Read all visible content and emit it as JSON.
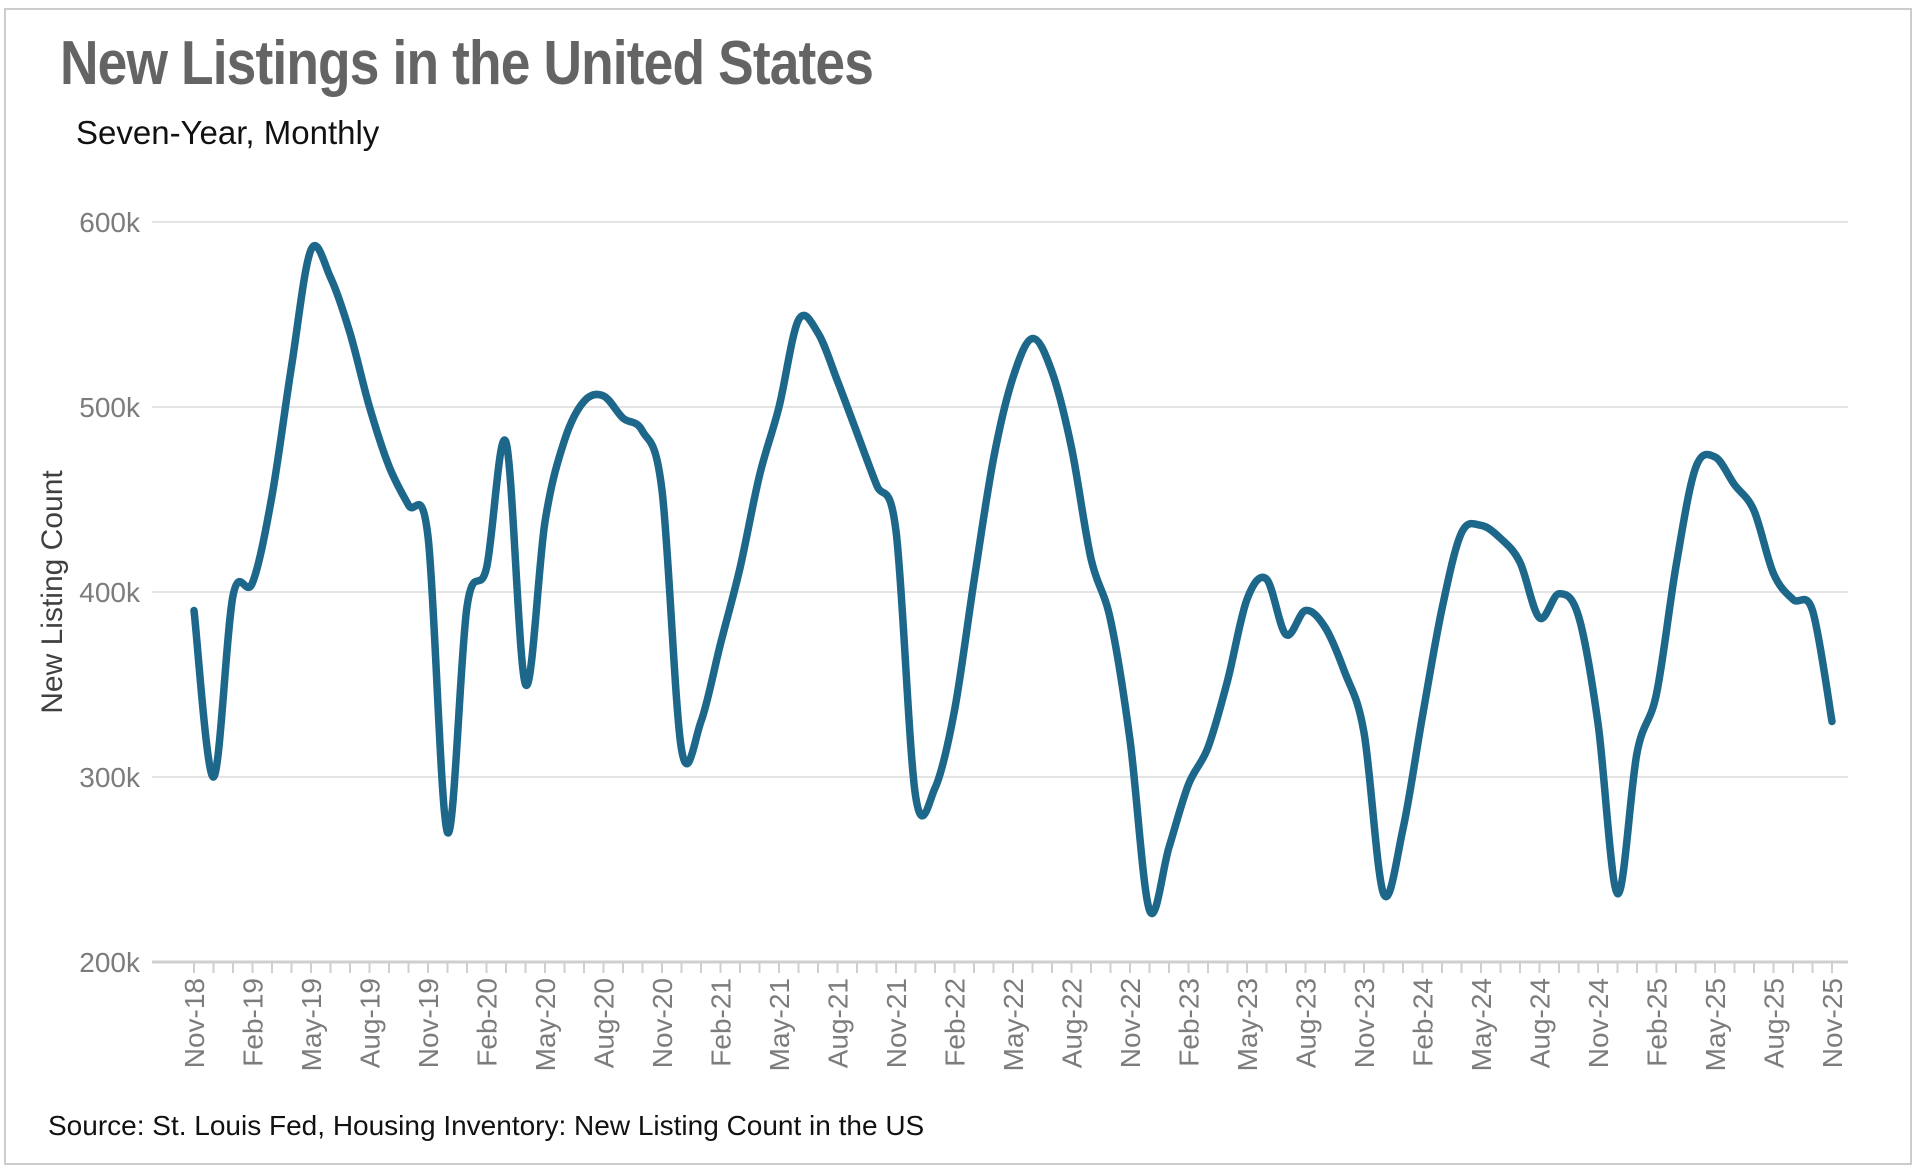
{
  "header": {
    "title": "New Listings in the United States",
    "subtitle": "Seven-Year, Monthly"
  },
  "footer": {
    "source": "Source: St. Louis Fed, Housing Inventory: New Listing Count in the US"
  },
  "colors": {
    "line": "#1d688a",
    "gridline": "#e4e4e4",
    "axis": "#cfcfcf",
    "tick_text": "#7c7c7c",
    "title_text": "#646464",
    "frame_border": "#cccccc"
  },
  "chart_data": {
    "type": "line",
    "title": "New Listings in the United States",
    "subtitle": "Seven-Year, Monthly",
    "xlabel": "",
    "ylabel": "New Listing Count",
    "ylim": [
      200000,
      600000
    ],
    "units": "listings (thousands shown as k)",
    "grid": "horizontal",
    "legend_position": "none",
    "yticks": [
      {
        "value": 600,
        "label": "600k"
      },
      {
        "value": 500,
        "label": "500k"
      },
      {
        "value": 400,
        "label": "400k"
      },
      {
        "value": 300,
        "label": "300k"
      },
      {
        "value": 200,
        "label": "200k"
      }
    ],
    "x_label_every": 3,
    "categories": [
      "Nov-18",
      "Dec-18",
      "Jan-19",
      "Feb-19",
      "Mar-19",
      "Apr-19",
      "May-19",
      "Jun-19",
      "Jul-19",
      "Aug-19",
      "Sep-19",
      "Oct-19",
      "Nov-19",
      "Dec-19",
      "Jan-20",
      "Feb-20",
      "Mar-20",
      "Apr-20",
      "May-20",
      "Jun-20",
      "Jul-20",
      "Aug-20",
      "Sep-20",
      "Oct-20",
      "Nov-20",
      "Dec-20",
      "Jan-21",
      "Feb-21",
      "Mar-21",
      "Apr-21",
      "May-21",
      "Jun-21",
      "Jul-21",
      "Aug-21",
      "Sep-21",
      "Oct-21",
      "Nov-21",
      "Dec-21",
      "Jan-22",
      "Feb-22",
      "Mar-22",
      "Apr-22",
      "May-22",
      "Jun-22",
      "Jul-22",
      "Aug-22",
      "Sep-22",
      "Oct-22",
      "Nov-22",
      "Dec-22",
      "Jan-23",
      "Feb-23",
      "Mar-23",
      "Apr-23",
      "May-23",
      "Jun-23",
      "Jul-23",
      "Aug-23",
      "Sep-23",
      "Oct-23",
      "Nov-23",
      "Dec-23",
      "Jan-24",
      "Feb-24",
      "Mar-24",
      "Apr-24",
      "May-24",
      "Jun-24",
      "Jul-24",
      "Aug-24",
      "Sep-24",
      "Oct-24",
      "Nov-24",
      "Dec-24",
      "Jan-25",
      "Feb-25",
      "Mar-25",
      "Apr-25",
      "May-25",
      "Jun-25",
      "Jul-25",
      "Aug-25",
      "Sep-25",
      "Oct-25",
      "Nov-25"
    ],
    "values_thousands": [
      390,
      300,
      398,
      405,
      452,
      522,
      585,
      570,
      540,
      500,
      468,
      447,
      430,
      270,
      392,
      413,
      481,
      350,
      438,
      482,
      503,
      506,
      494,
      487,
      455,
      315,
      330,
      372,
      413,
      463,
      500,
      547,
      540,
      514,
      486,
      458,
      433,
      290,
      294,
      336,
      406,
      472,
      516,
      537,
      519,
      478,
      418,
      385,
      320,
      228,
      262,
      296,
      316,
      352,
      396,
      407,
      377,
      390,
      381,
      357,
      324,
      237,
      272,
      333,
      391,
      432,
      436,
      429,
      416,
      386,
      399,
      387,
      329,
      237,
      313,
      345,
      414,
      467,
      473,
      458,
      444,
      410,
      396,
      390,
      330
    ]
  }
}
